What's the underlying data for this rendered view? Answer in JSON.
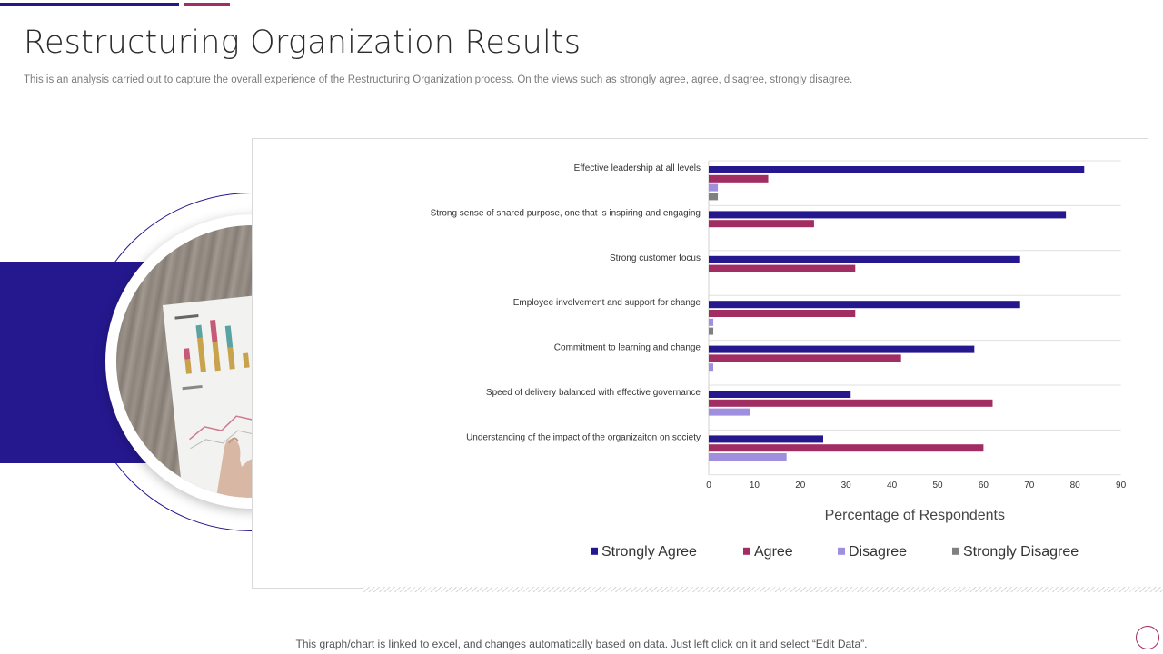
{
  "page": {
    "title": "Restructuring Organization Results",
    "subtitle": "This is an analysis carried out to capture the overall experience of the Restructuring Organization process. On the views such as strongly agree, agree, disagree, strongly disagree.",
    "footnote": "This graph/chart is linked to excel,  and changes automatically based on data. Just left click on it and select “Edit Data”."
  },
  "image": {
    "icon": "chart-report-photo-icon"
  },
  "colors": {
    "primary": "#25188f",
    "accent": "#a12d62",
    "strongly_agree": "#25188f",
    "agree": "#a12d62",
    "disagree": "#a08fdf",
    "strongly_disagree": "#808080"
  },
  "chart_data": {
    "type": "bar",
    "orientation": "horizontal",
    "categories": [
      "Effective leadership at all levels",
      "Strong sense of shared purpose, one that is inspiring and engaging",
      "Strong customer focus",
      "Employee involvement and support for change",
      "Commitment to learning and change",
      "Speed of delivery balanced with effective governance",
      "Understanding of the impact of the organizaiton on society"
    ],
    "series": [
      {
        "name": "Strongly Agree",
        "color": "#25188f",
        "values": [
          82,
          78,
          68,
          68,
          58,
          31,
          25
        ]
      },
      {
        "name": "Agree",
        "color": "#a12d62",
        "values": [
          13,
          23,
          32,
          32,
          42,
          62,
          60
        ]
      },
      {
        "name": "Disagree",
        "color": "#a08fdf",
        "values": [
          2,
          0,
          0,
          1,
          1,
          9,
          17
        ]
      },
      {
        "name": "Strongly Disagree",
        "color": "#808080",
        "values": [
          2,
          0,
          0,
          1,
          0,
          0,
          0
        ]
      }
    ],
    "xlabel": "Percentage of Respondents",
    "ylabel": "",
    "xlim": [
      0,
      90
    ],
    "ticks": [
      "0",
      "10",
      "20",
      "30",
      "40",
      "50",
      "60",
      "70",
      "80",
      "90"
    ],
    "grid": true,
    "legend_position": "bottom"
  }
}
